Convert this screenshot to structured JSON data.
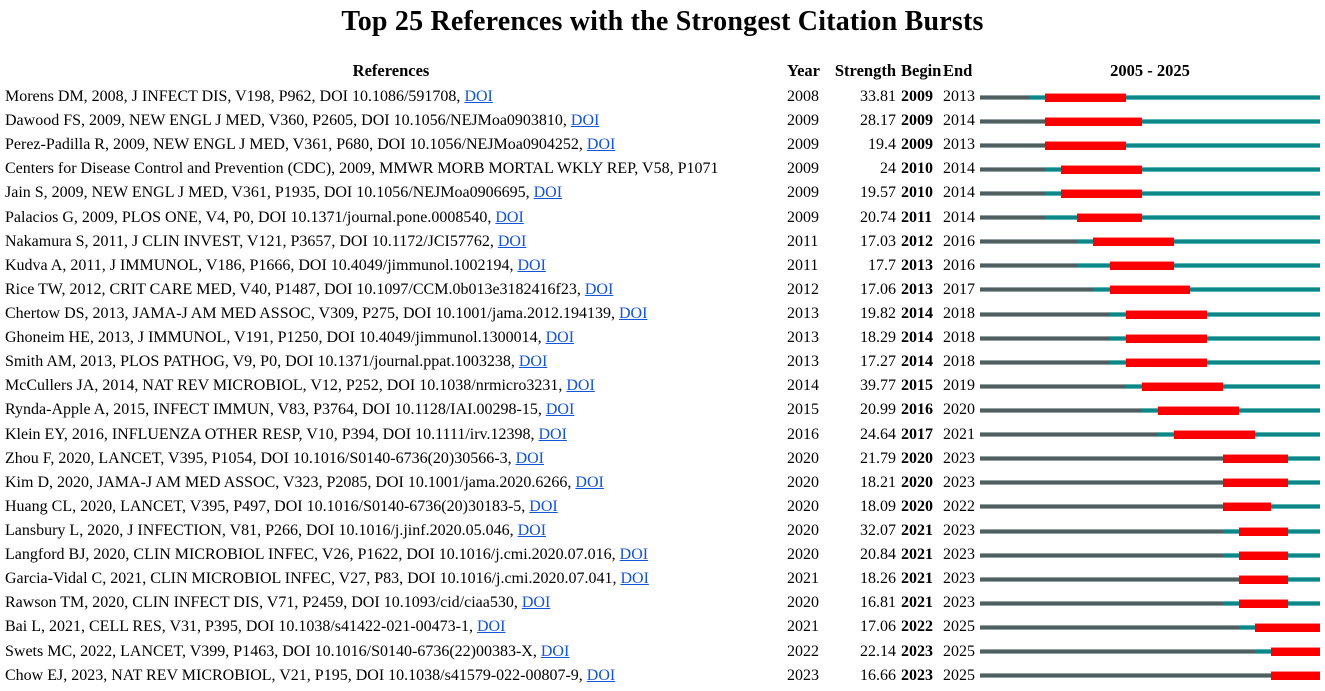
{
  "title": "Top 25 References with the Strongest Citation Bursts",
  "headers": {
    "references": "References",
    "year": "Year",
    "strength": "Strength",
    "begin": "Begin",
    "end": "End",
    "period": "2005 - 2025"
  },
  "doi_link_label": "DOI",
  "colors": {
    "burst_segment": "#fa0000",
    "timeline_segment": "#0c8686",
    "pre_publication_segment": "#4f5f5f",
    "doi_link": "#1454d6"
  },
  "chart_data": {
    "type": "table",
    "subtype": "citation-burst-timeline",
    "timeline_start": 2005,
    "timeline_end": 2025,
    "columns": [
      "References",
      "Year",
      "Strength",
      "Begin",
      "End",
      "2005 - 2025"
    ],
    "rows": [
      {
        "ref": "Morens DM, 2008, J INFECT DIS, V198, P962, DOI 10.1086/591708",
        "has_doi": true,
        "year": 2008,
        "strength": "33.81",
        "begin": 2009,
        "end": 2013
      },
      {
        "ref": "Dawood FS, 2009, NEW ENGL J MED, V360, P2605, DOI 10.1056/NEJMoa0903810",
        "has_doi": true,
        "year": 2009,
        "strength": "28.17",
        "begin": 2009,
        "end": 2014
      },
      {
        "ref": "Perez-Padilla R, 2009, NEW ENGL J MED, V361, P680, DOI 10.1056/NEJMoa0904252",
        "has_doi": true,
        "year": 2009,
        "strength": "19.4",
        "begin": 2009,
        "end": 2013
      },
      {
        "ref": "Centers for Disease Control and Prevention (CDC), 2009, MMWR MORB MORTAL WKLY REP, V58, P1071",
        "has_doi": false,
        "year": 2009,
        "strength": "24",
        "begin": 2010,
        "end": 2014
      },
      {
        "ref": "Jain S, 2009, NEW ENGL J MED, V361, P1935, DOI 10.1056/NEJMoa0906695",
        "has_doi": true,
        "year": 2009,
        "strength": "19.57",
        "begin": 2010,
        "end": 2014
      },
      {
        "ref": "Palacios G, 2009, PLOS ONE, V4, P0, DOI 10.1371/journal.pone.0008540",
        "has_doi": true,
        "year": 2009,
        "strength": "20.74",
        "begin": 2011,
        "end": 2014
      },
      {
        "ref": "Nakamura S, 2011, J CLIN INVEST, V121, P3657, DOI 10.1172/JCI57762",
        "has_doi": true,
        "year": 2011,
        "strength": "17.03",
        "begin": 2012,
        "end": 2016
      },
      {
        "ref": "Kudva A, 2011, J IMMUNOL, V186, P1666, DOI 10.4049/jimmunol.1002194",
        "has_doi": true,
        "year": 2011,
        "strength": "17.7",
        "begin": 2013,
        "end": 2016
      },
      {
        "ref": "Rice TW, 2012, CRIT CARE MED, V40, P1487, DOI 10.1097/CCM.0b013e3182416f23",
        "has_doi": true,
        "year": 2012,
        "strength": "17.06",
        "begin": 2013,
        "end": 2017
      },
      {
        "ref": "Chertow DS, 2013, JAMA-J AM MED ASSOC, V309, P275, DOI 10.1001/jama.2012.194139",
        "has_doi": true,
        "year": 2013,
        "strength": "19.82",
        "begin": 2014,
        "end": 2018
      },
      {
        "ref": "Ghoneim HE, 2013, J IMMUNOL, V191, P1250, DOI 10.4049/jimmunol.1300014",
        "has_doi": true,
        "year": 2013,
        "strength": "18.29",
        "begin": 2014,
        "end": 2018
      },
      {
        "ref": "Smith AM, 2013, PLOS PATHOG, V9, P0, DOI 10.1371/journal.ppat.1003238",
        "has_doi": true,
        "year": 2013,
        "strength": "17.27",
        "begin": 2014,
        "end": 2018
      },
      {
        "ref": "McCullers JA, 2014, NAT REV MICROBIOL, V12, P252, DOI 10.1038/nrmicro3231",
        "has_doi": true,
        "year": 2014,
        "strength": "39.77",
        "begin": 2015,
        "end": 2019
      },
      {
        "ref": "Rynda-Apple A, 2015, INFECT IMMUN, V83, P3764, DOI 10.1128/IAI.00298-15",
        "has_doi": true,
        "year": 2015,
        "strength": "20.99",
        "begin": 2016,
        "end": 2020
      },
      {
        "ref": "Klein EY, 2016, INFLUENZA OTHER RESP, V10, P394, DOI 10.1111/irv.12398",
        "has_doi": true,
        "year": 2016,
        "strength": "24.64",
        "begin": 2017,
        "end": 2021
      },
      {
        "ref": "Zhou F, 2020, LANCET, V395, P1054, DOI 10.1016/S0140-6736(20)30566-3",
        "has_doi": true,
        "year": 2020,
        "strength": "21.79",
        "begin": 2020,
        "end": 2023
      },
      {
        "ref": "Kim D, 2020, JAMA-J AM MED ASSOC, V323, P2085, DOI 10.1001/jama.2020.6266",
        "has_doi": true,
        "year": 2020,
        "strength": "18.21",
        "begin": 2020,
        "end": 2023
      },
      {
        "ref": "Huang CL, 2020, LANCET, V395, P497, DOI 10.1016/S0140-6736(20)30183-5",
        "has_doi": true,
        "year": 2020,
        "strength": "18.09",
        "begin": 2020,
        "end": 2022
      },
      {
        "ref": "Lansbury L, 2020, J INFECTION, V81, P266, DOI 10.1016/j.jinf.2020.05.046",
        "has_doi": true,
        "year": 2020,
        "strength": "32.07",
        "begin": 2021,
        "end": 2023
      },
      {
        "ref": "Langford BJ, 2020, CLIN MICROBIOL INFEC, V26, P1622, DOI 10.1016/j.cmi.2020.07.016",
        "has_doi": true,
        "year": 2020,
        "strength": "20.84",
        "begin": 2021,
        "end": 2023
      },
      {
        "ref": "Garcia-Vidal C, 2021, CLIN MICROBIOL INFEC, V27, P83, DOI 10.1016/j.cmi.2020.07.041",
        "has_doi": true,
        "year": 2021,
        "strength": "18.26",
        "begin": 2021,
        "end": 2023
      },
      {
        "ref": "Rawson TM, 2020, CLIN INFECT DIS, V71, P2459, DOI 10.1093/cid/ciaa530",
        "has_doi": true,
        "year": 2020,
        "strength": "16.81",
        "begin": 2021,
        "end": 2023
      },
      {
        "ref": "Bai L, 2021, CELL RES, V31, P395, DOI 10.1038/s41422-021-00473-1",
        "has_doi": true,
        "year": 2021,
        "strength": "17.06",
        "begin": 2022,
        "end": 2025
      },
      {
        "ref": "Swets MC, 2022, LANCET, V399, P1463, DOI 10.1016/S0140-6736(22)00383-X",
        "has_doi": true,
        "year": 2022,
        "strength": "22.14",
        "begin": 2023,
        "end": 2025
      },
      {
        "ref": "Chow EJ, 2023, NAT REV MICROBIOL, V21, P195, DOI 10.1038/s41579-022-00807-9",
        "has_doi": true,
        "year": 2023,
        "strength": "16.66",
        "begin": 2023,
        "end": 2025
      }
    ]
  }
}
